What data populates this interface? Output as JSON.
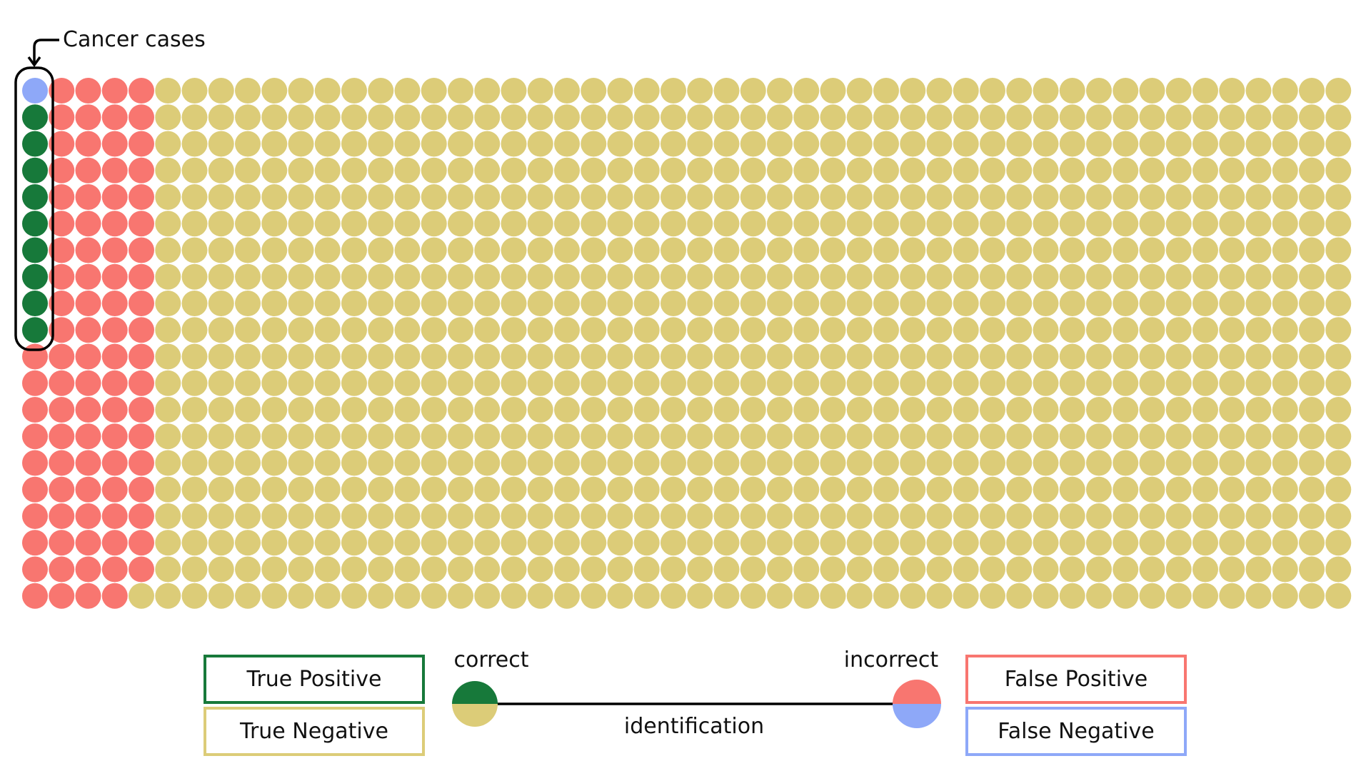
{
  "chart_data": {
    "type": "waffle",
    "grid": {
      "columns": 50,
      "rows": 20,
      "total": 1000
    },
    "cells": {
      "false_negative": 1,
      "true_positive": 9,
      "false_positive": 89,
      "true_negative": 901
    },
    "fill_order": "column-major, top to bottom",
    "annotation": "Cancer cases"
  },
  "colors": {
    "true_positive": "#17793a",
    "true_negative": "#dccc78",
    "false_positive": "#f87670",
    "false_negative": "#8ea8f8"
  },
  "legend": {
    "true_positive": "True Positive",
    "true_negative": "True Negative",
    "false_positive": "False Positive",
    "false_negative": "False Negative"
  },
  "scale": {
    "correct": "correct",
    "incorrect": "incorrect",
    "axis_label": "identification"
  }
}
